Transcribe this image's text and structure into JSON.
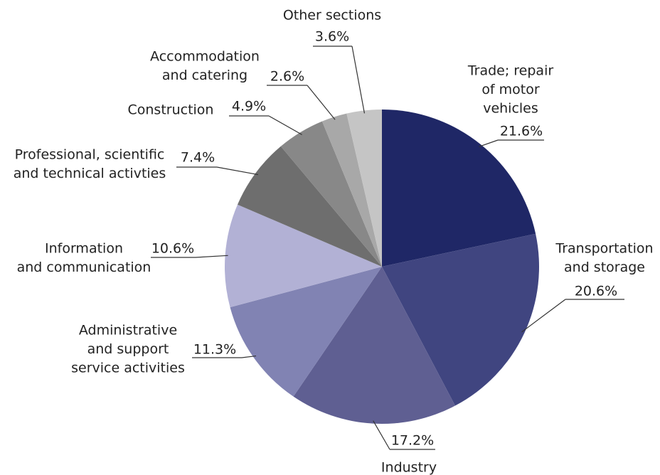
{
  "chart_data": {
    "type": "pie",
    "categories": [
      [
        "Trade; repair",
        "of motor",
        "vehicles"
      ],
      [
        "Transportation",
        "and storage"
      ],
      [
        "Industry"
      ],
      [
        "Administrative",
        "and support",
        "service activities"
      ],
      [
        "Information",
        "and communication"
      ],
      [
        "Professional, scientific",
        "and technical activties"
      ],
      [
        "Construction"
      ],
      [
        "Accommodation",
        "and catering"
      ],
      [
        "Other sections"
      ]
    ],
    "values": [
      21.6,
      20.6,
      17.2,
      11.3,
      10.6,
      7.4,
      4.9,
      2.6,
      3.6
    ],
    "value_labels": [
      "21.6%",
      "20.6%",
      "17.2%",
      "11.3%",
      "10.6%",
      "7.4%",
      "4.9%",
      "2.6%",
      "3.6%"
    ],
    "colors": [
      "#1f2766",
      "#404580",
      "#5f5f92",
      "#8183b3",
      "#b2b1d5",
      "#6e6e6e",
      "#888888",
      "#a8a8a8",
      "#c5c5c5"
    ]
  }
}
